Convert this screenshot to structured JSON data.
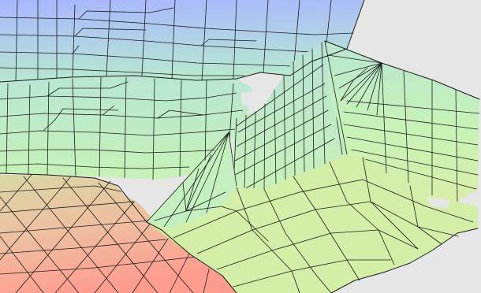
{
  "viewer": {
    "background_color": "#e6e6e6",
    "edge_color": "#1a1a1a",
    "colormap": [
      "#a9b6ff",
      "#b6e6d2",
      "#c9f3b4",
      "#e9cf9e",
      "#ff9d8f"
    ]
  }
}
